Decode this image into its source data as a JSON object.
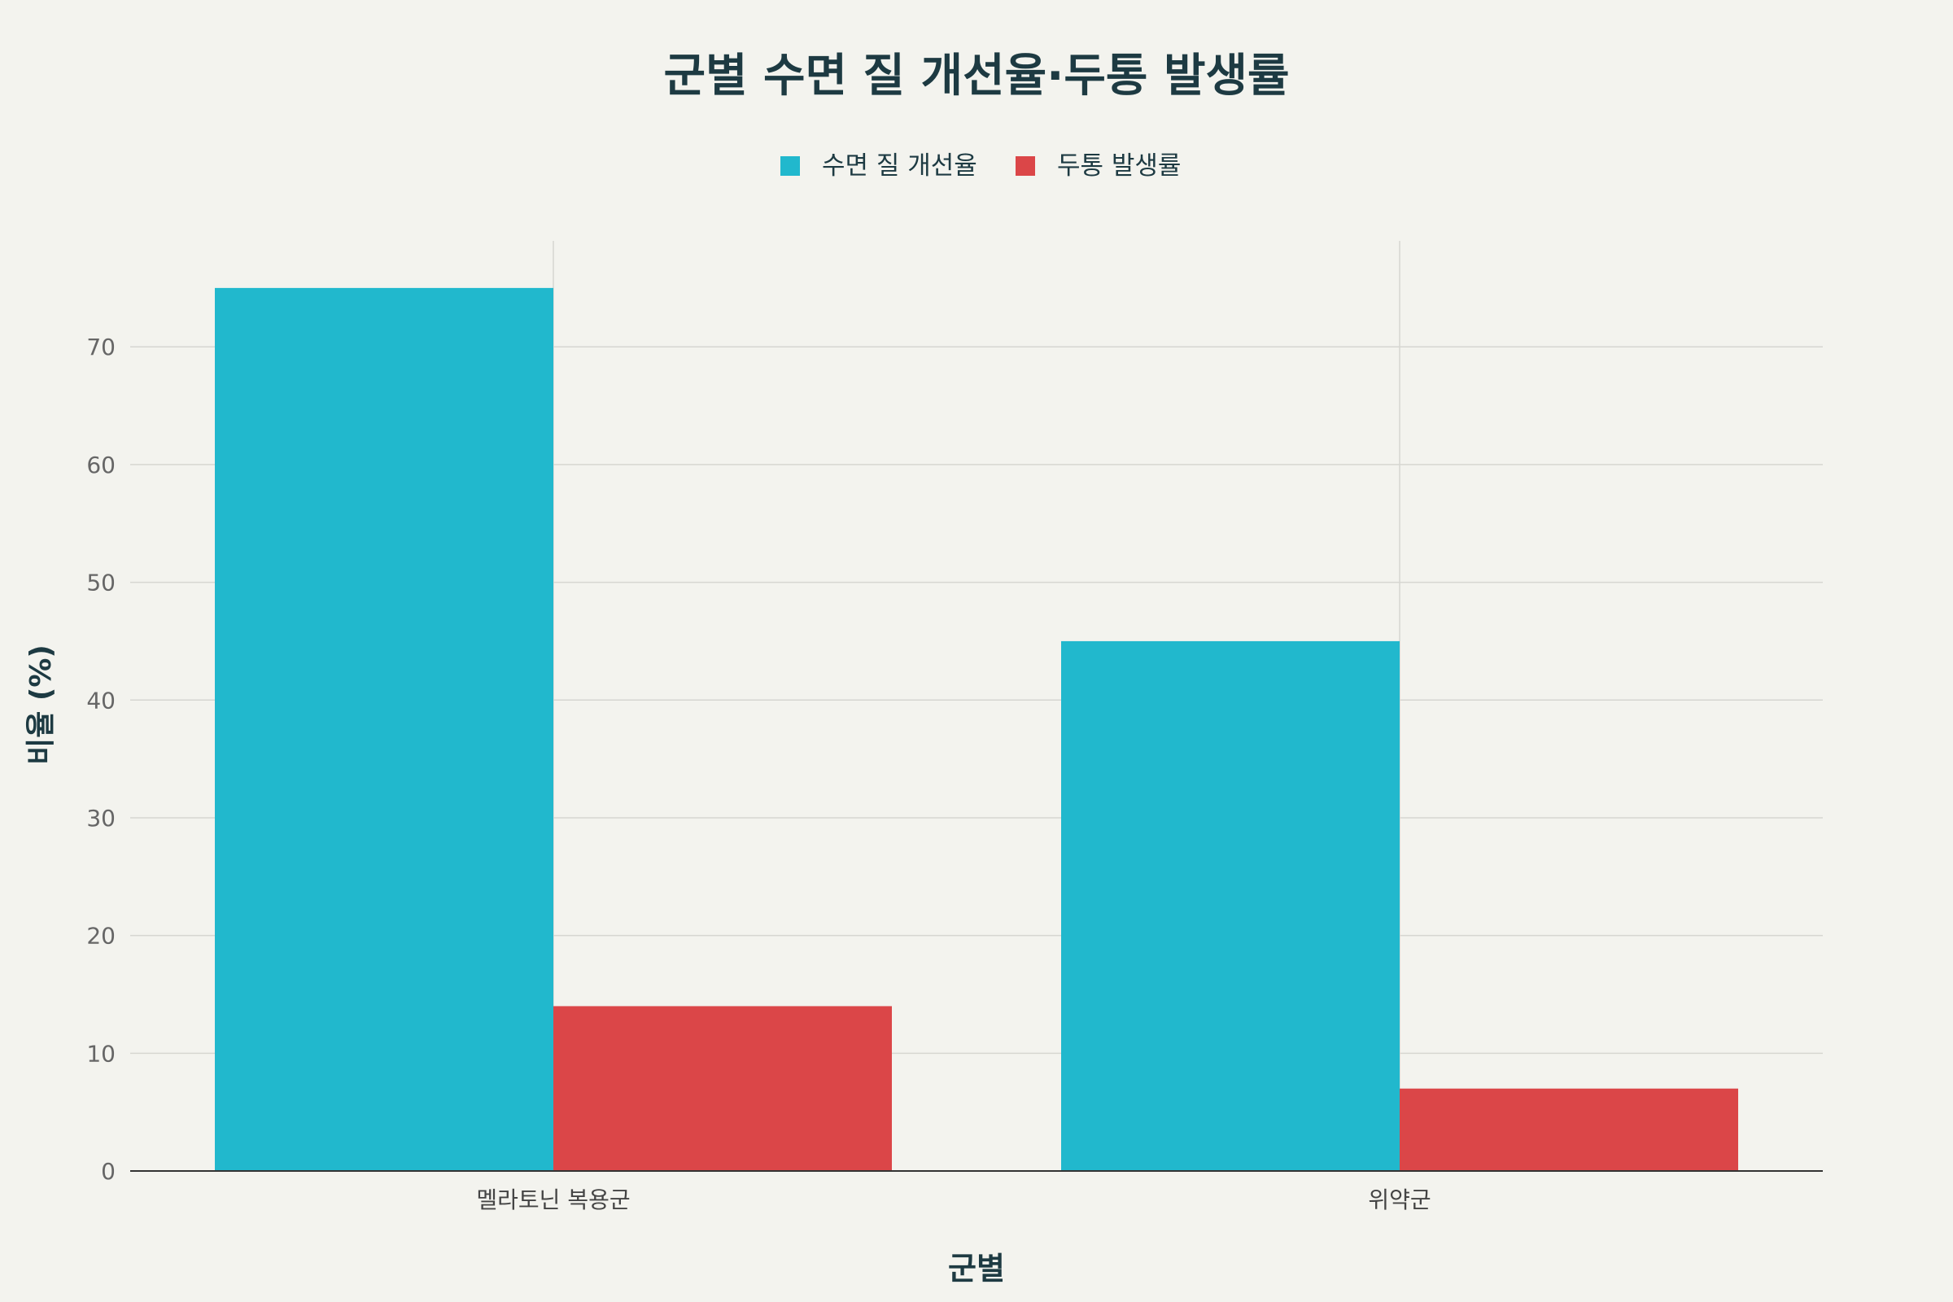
{
  "chart_data": {
    "type": "bar",
    "title": "군별 수면 질 개선율·두통 발생률",
    "xlabel": "군별",
    "ylabel": "비율 (%)",
    "categories": [
      "멜라토닌 복용군",
      "위약군"
    ],
    "series": [
      {
        "name": "수면 질 개선율",
        "values": [
          75,
          45
        ],
        "color": "#21b8cd"
      },
      {
        "name": "두통 발생률",
        "values": [
          14,
          7
        ],
        "color": "#db4648"
      }
    ],
    "ylim": [
      0,
      79
    ],
    "yticks": [
      0,
      10,
      20,
      30,
      40,
      50,
      60,
      70
    ],
    "grid": true,
    "legend": "top-center"
  }
}
